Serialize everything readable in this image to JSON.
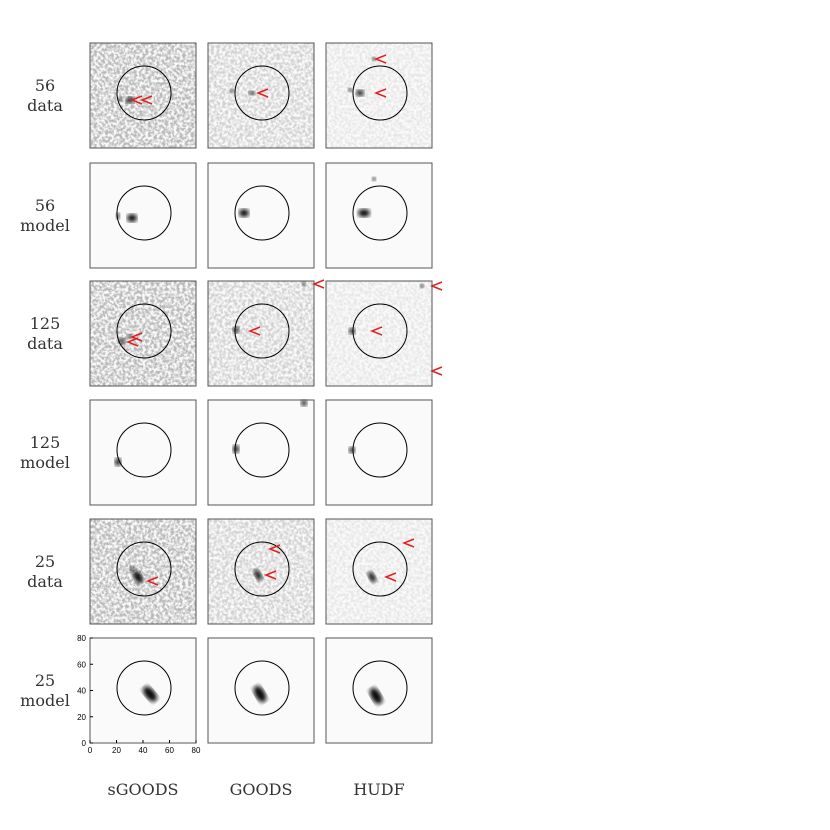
{
  "rows": [
    {
      "id": "56",
      "kind": "data"
    },
    {
      "id": "56",
      "kind": "model"
    },
    {
      "id": "125",
      "kind": "data"
    },
    {
      "id": "125",
      "kind": "model"
    },
    {
      "id": "25",
      "kind": "data"
    },
    {
      "id": "25",
      "kind": "model"
    }
  ],
  "columns": [
    "sGOODS",
    "GOODS",
    "HUDF"
  ],
  "axes": {
    "xticks": [
      0,
      20,
      40,
      60,
      80
    ],
    "yticks": [
      0,
      20,
      40,
      60,
      80
    ]
  }
}
